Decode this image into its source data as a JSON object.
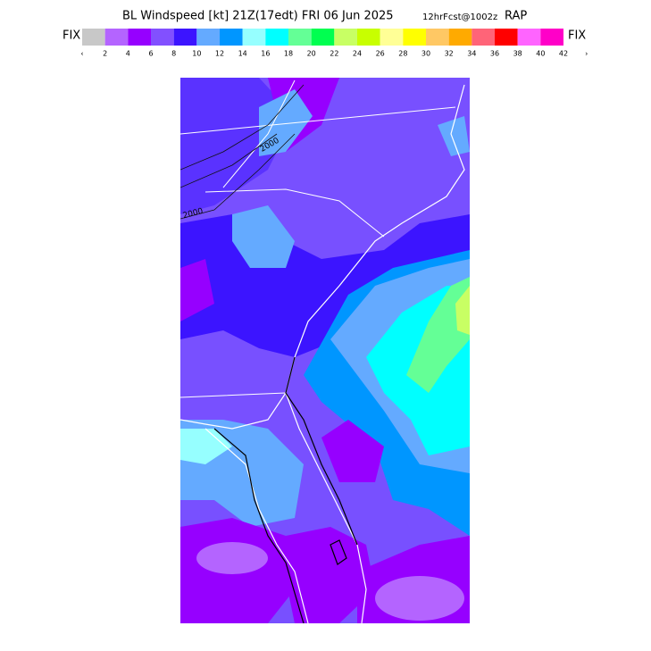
{
  "header": {
    "title": "BL Windspeed [kt] 21Z(17edt) FRI 06 Jun 2025",
    "forecast": "12hrFcst@1002z",
    "model": "RAP"
  },
  "colorbar": {
    "left_label": "FIX",
    "right_label": "FIX",
    "colors": [
      "#c8c8c8",
      "#b464ff",
      "#9600ff",
      "#8250ff",
      "#3c14ff",
      "#64aaff",
      "#0096ff",
      "#96ffff",
      "#00ffff",
      "#64ff96",
      "#00ff50",
      "#c8ff64",
      "#c8ff00",
      "#ffff96",
      "#ffff00",
      "#ffc864",
      "#ffaa00",
      "#ff6478",
      "#ff0000",
      "#ff64ff",
      "#ff00c8"
    ],
    "labels": [
      "‹",
      "2",
      "4",
      "6",
      "8",
      "10",
      "12",
      "14",
      "16",
      "18",
      "20",
      "22",
      "24",
      "26",
      "28",
      "30",
      "32",
      "34",
      "36",
      "38",
      "40",
      "42",
      "›"
    ]
  },
  "map": {
    "contour_labels": [
      "2000",
      "2000"
    ]
  }
}
